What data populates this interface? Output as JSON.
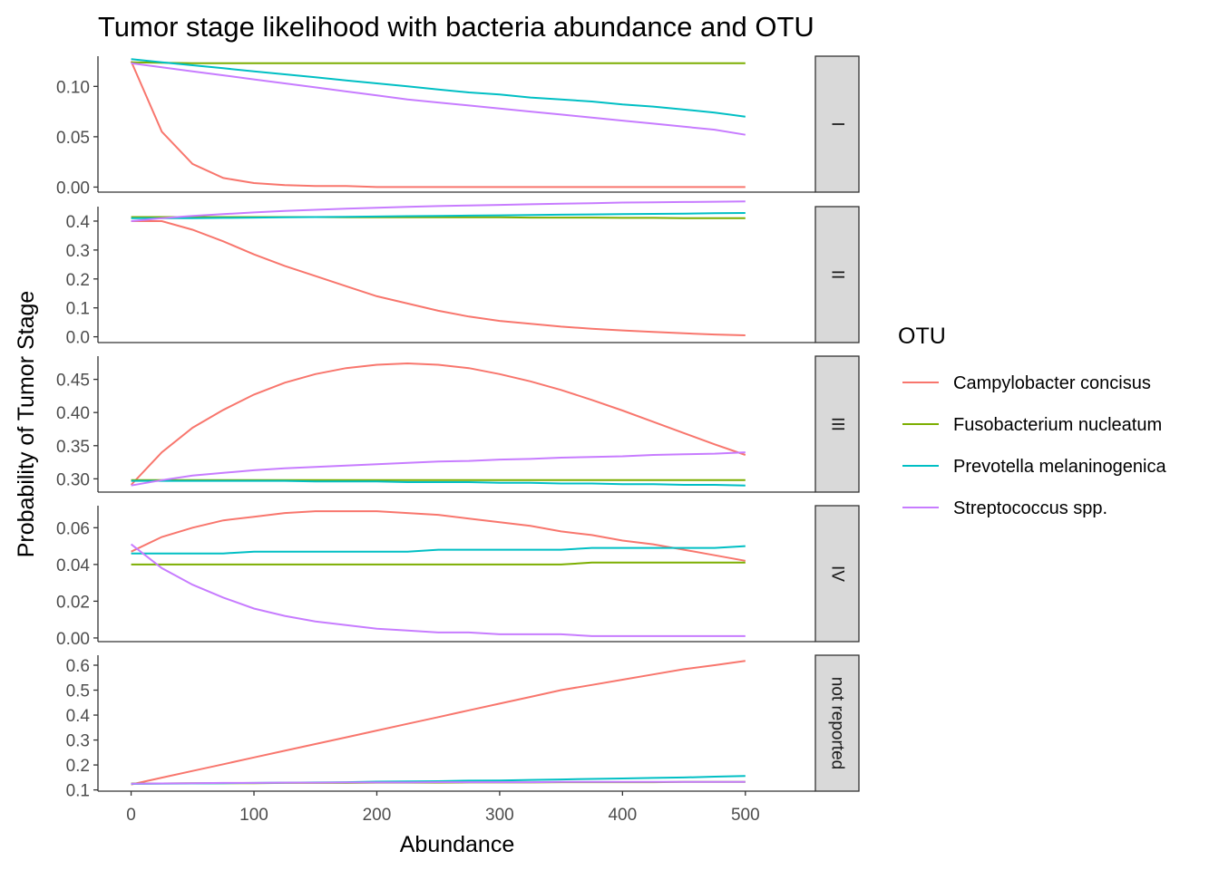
{
  "chart_data": {
    "type": "line",
    "title": "Tumor stage likelihood with bacteria abundance and OTU",
    "xlabel": "Abundance",
    "ylabel": "Probability of Tumor Stage",
    "xlim": [
      -27,
      557
    ],
    "x_ticks": [
      0,
      100,
      200,
      300,
      400,
      500
    ],
    "legend": {
      "title": "OTU",
      "position": "right"
    },
    "series_styles": [
      {
        "name": "Campylobacter concisus",
        "color": "#F8766D"
      },
      {
        "name": "Fusobacterium nucleatum",
        "color": "#7CAE00"
      },
      {
        "name": "Prevotella melaninogenica",
        "color": "#00BFC4"
      },
      {
        "name": "Streptococcus spp.",
        "color": "#C77CFF"
      }
    ],
    "x": [
      0,
      25,
      50,
      75,
      100,
      125,
      150,
      175,
      200,
      225,
      250,
      275,
      300,
      325,
      350,
      375,
      400,
      425,
      450,
      475,
      500
    ],
    "panels": [
      {
        "strip": "I",
        "ylim": [
          -0.005,
          0.13
        ],
        "y_ticks": [
          0.0,
          0.05,
          0.1
        ],
        "y_tick_labels": [
          "0.00",
          "0.05",
          "0.10"
        ],
        "series": [
          {
            "values": [
              0.125,
              0.055,
              0.023,
              0.009,
              0.004,
              0.002,
              0.001,
              0.001,
              0.0,
              0.0,
              0.0,
              0.0,
              0.0,
              0.0,
              0.0,
              0.0,
              0.0,
              0.0,
              0.0,
              0.0,
              0.0
            ]
          },
          {
            "values": [
              0.124,
              0.1235,
              0.123,
              0.123,
              0.123,
              0.123,
              0.123,
              0.123,
              0.123,
              0.123,
              0.123,
              0.123,
              0.123,
              0.123,
              0.123,
              0.123,
              0.123,
              0.123,
              0.123,
              0.123,
              0.123
            ]
          },
          {
            "values": [
              0.127,
              0.124,
              0.121,
              0.118,
              0.115,
              0.112,
              0.109,
              0.106,
              0.103,
              0.1,
              0.097,
              0.094,
              0.092,
              0.089,
              0.087,
              0.085,
              0.082,
              0.08,
              0.077,
              0.074,
              0.07
            ]
          },
          {
            "values": [
              0.123,
              0.119,
              0.115,
              0.111,
              0.107,
              0.103,
              0.099,
              0.095,
              0.091,
              0.087,
              0.084,
              0.081,
              0.078,
              0.075,
              0.072,
              0.069,
              0.066,
              0.063,
              0.06,
              0.057,
              0.052
            ]
          }
        ]
      },
      {
        "strip": "II",
        "ylim": [
          -0.02,
          0.45
        ],
        "y_ticks": [
          0.0,
          0.1,
          0.2,
          0.3,
          0.4
        ],
        "y_tick_labels": [
          "0.0",
          "0.1",
          "0.2",
          "0.3",
          "0.4"
        ],
        "series": [
          {
            "values": [
              0.4,
              0.4,
              0.37,
              0.33,
              0.285,
              0.245,
              0.21,
              0.175,
              0.14,
              0.115,
              0.09,
              0.07,
              0.055,
              0.045,
              0.035,
              0.028,
              0.022,
              0.017,
              0.012,
              0.008,
              0.005
            ]
          },
          {
            "values": [
              0.414,
              0.414,
              0.414,
              0.414,
              0.414,
              0.414,
              0.414,
              0.413,
              0.413,
              0.413,
              0.413,
              0.413,
              0.413,
              0.412,
              0.412,
              0.412,
              0.411,
              0.411,
              0.41,
              0.41,
              0.41
            ]
          },
          {
            "values": [
              0.41,
              0.41,
              0.41,
              0.411,
              0.412,
              0.413,
              0.414,
              0.415,
              0.416,
              0.417,
              0.418,
              0.419,
              0.42,
              0.421,
              0.422,
              0.423,
              0.424,
              0.425,
              0.426,
              0.427,
              0.428
            ]
          },
          {
            "values": [
              0.4,
              0.41,
              0.418,
              0.424,
              0.43,
              0.435,
              0.439,
              0.443,
              0.446,
              0.449,
              0.452,
              0.454,
              0.456,
              0.458,
              0.46,
              0.462,
              0.464,
              0.465,
              0.466,
              0.467,
              0.468
            ]
          }
        ]
      },
      {
        "strip": "III",
        "ylim": [
          0.28,
          0.485
        ],
        "y_ticks": [
          0.3,
          0.35,
          0.4,
          0.45
        ],
        "y_tick_labels": [
          "0.30",
          "0.35",
          "0.40",
          "0.45"
        ],
        "series": [
          {
            "values": [
              0.291,
              0.34,
              0.377,
              0.404,
              0.427,
              0.445,
              0.458,
              0.467,
              0.472,
              0.474,
              0.472,
              0.467,
              0.458,
              0.447,
              0.434,
              0.419,
              0.403,
              0.386,
              0.369,
              0.352,
              0.336
            ]
          },
          {
            "values": [
              0.298,
              0.298,
              0.298,
              0.298,
              0.298,
              0.298,
              0.298,
              0.298,
              0.298,
              0.298,
              0.298,
              0.298,
              0.298,
              0.298,
              0.298,
              0.298,
              0.298,
              0.298,
              0.298,
              0.298,
              0.298
            ]
          },
          {
            "values": [
              0.297,
              0.297,
              0.297,
              0.297,
              0.297,
              0.297,
              0.296,
              0.296,
              0.296,
              0.295,
              0.295,
              0.295,
              0.294,
              0.294,
              0.293,
              0.293,
              0.292,
              0.292,
              0.291,
              0.291,
              0.29
            ]
          },
          {
            "values": [
              0.29,
              0.298,
              0.305,
              0.309,
              0.313,
              0.316,
              0.318,
              0.32,
              0.322,
              0.324,
              0.326,
              0.327,
              0.329,
              0.33,
              0.332,
              0.333,
              0.334,
              0.336,
              0.337,
              0.338,
              0.34
            ]
          }
        ]
      },
      {
        "strip": "IV",
        "ylim": [
          -0.002,
          0.072
        ],
        "y_ticks": [
          0.0,
          0.02,
          0.04,
          0.06
        ],
        "y_tick_labels": [
          "0.00",
          "0.02",
          "0.04",
          "0.06"
        ],
        "series": [
          {
            "values": [
              0.047,
              0.055,
              0.06,
              0.064,
              0.066,
              0.068,
              0.069,
              0.069,
              0.069,
              0.068,
              0.067,
              0.065,
              0.063,
              0.061,
              0.058,
              0.056,
              0.053,
              0.051,
              0.048,
              0.045,
              0.042
            ]
          },
          {
            "values": [
              0.04,
              0.04,
              0.04,
              0.04,
              0.04,
              0.04,
              0.04,
              0.04,
              0.04,
              0.04,
              0.04,
              0.04,
              0.04,
              0.04,
              0.04,
              0.041,
              0.041,
              0.041,
              0.041,
              0.041,
              0.041
            ]
          },
          {
            "values": [
              0.046,
              0.046,
              0.046,
              0.046,
              0.047,
              0.047,
              0.047,
              0.047,
              0.047,
              0.047,
              0.048,
              0.048,
              0.048,
              0.048,
              0.048,
              0.049,
              0.049,
              0.049,
              0.049,
              0.049,
              0.05
            ]
          },
          {
            "values": [
              0.051,
              0.038,
              0.029,
              0.022,
              0.016,
              0.012,
              0.009,
              0.007,
              0.005,
              0.004,
              0.003,
              0.003,
              0.002,
              0.002,
              0.002,
              0.001,
              0.001,
              0.001,
              0.001,
              0.001,
              0.001
            ]
          }
        ]
      },
      {
        "strip": "not reported",
        "ylim": [
          0.095,
          0.64
        ],
        "y_ticks": [
          0.1,
          0.2,
          0.3,
          0.4,
          0.5,
          0.6
        ],
        "y_tick_labels": [
          "0.1",
          "0.2",
          "0.3",
          "0.4",
          "0.5",
          "0.6"
        ],
        "series": [
          {
            "values": [
              0.122,
              0.149,
              0.176,
              0.203,
              0.23,
              0.257,
              0.284,
              0.311,
              0.338,
              0.365,
              0.392,
              0.419,
              0.446,
              0.473,
              0.5,
              0.521,
              0.542,
              0.563,
              0.584,
              0.6,
              0.617
            ]
          },
          {
            "values": [
              0.126,
              0.126,
              0.127,
              0.127,
              0.127,
              0.128,
              0.128,
              0.128,
              0.129,
              0.129,
              0.129,
              0.13,
              0.13,
              0.13,
              0.131,
              0.131,
              0.131,
              0.131,
              0.132,
              0.132,
              0.132
            ]
          },
          {
            "values": [
              0.124,
              0.125,
              0.126,
              0.127,
              0.128,
              0.129,
              0.13,
              0.131,
              0.133,
              0.134,
              0.135,
              0.137,
              0.138,
              0.14,
              0.142,
              0.144,
              0.146,
              0.148,
              0.15,
              0.153,
              0.156
            ]
          },
          {
            "values": [
              0.125,
              0.126,
              0.127,
              0.128,
              0.128,
              0.129,
              0.129,
              0.13,
              0.13,
              0.13,
              0.131,
              0.131,
              0.131,
              0.131,
              0.132,
              0.132,
              0.132,
              0.132,
              0.132,
              0.132,
              0.132
            ]
          }
        ]
      }
    ]
  }
}
